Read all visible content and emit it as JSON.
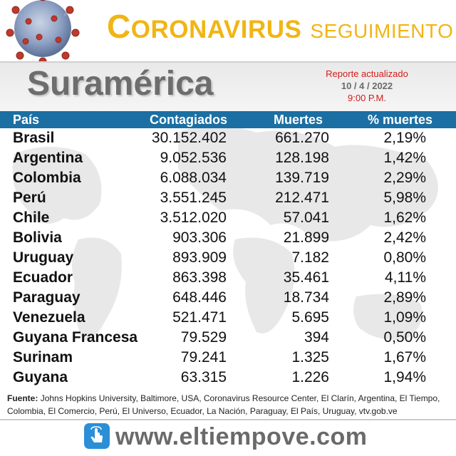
{
  "header": {
    "title_initial": "C",
    "title_rest": "ORONAVIRUS",
    "title_suffix": "SEGUIMIENTO"
  },
  "region": "Suramérica",
  "report": {
    "label": "Reporte actualizado",
    "date": "10 / 4 / 2022",
    "time": "9:00 P.M."
  },
  "table": {
    "columns": [
      "País",
      "Contagiados",
      "Muertes",
      "% muertes"
    ],
    "rows": [
      {
        "country": "Brasil",
        "cases": "30.152.402",
        "deaths": "661.270",
        "pct": "2,19%"
      },
      {
        "country": "Argentina",
        "cases": "9.052.536",
        "deaths": "128.198",
        "pct": "1,42%"
      },
      {
        "country": "Colombia",
        "cases": "6.088.034",
        "deaths": "139.719",
        "pct": "2,29%"
      },
      {
        "country": "Perú",
        "cases": "3.551.245",
        "deaths": "212.471",
        "pct": "5,98%"
      },
      {
        "country": "Chile",
        "cases": "3.512.020",
        "deaths": "57.041",
        "pct": "1,62%"
      },
      {
        "country": "Bolivia",
        "cases": "903.306",
        "deaths": "21.899",
        "pct": "2,42%"
      },
      {
        "country": "Uruguay",
        "cases": "893.909",
        "deaths": "7.182",
        "pct": "0,80%"
      },
      {
        "country": "Ecuador",
        "cases": "863.398",
        "deaths": "35.461",
        "pct": "4,11%"
      },
      {
        "country": "Paraguay",
        "cases": "648.446",
        "deaths": "18.734",
        "pct": "2,89%"
      },
      {
        "country": "Venezuela",
        "cases": "521.471",
        "deaths": "5.695",
        "pct": "1,09%"
      },
      {
        "country": "Guyana Francesa",
        "cases": "79.529",
        "deaths": "394",
        "pct": "0,50%"
      },
      {
        "country": "Surinam",
        "cases": "79.241",
        "deaths": "1.325",
        "pct": "1,67%"
      },
      {
        "country": "Guyana",
        "cases": "63.315",
        "deaths": "1.226",
        "pct": "1,94%"
      }
    ]
  },
  "footer": {
    "source_label": "Fuente:",
    "source_text": "Johns Hopkins University, Baltimore, USA, Coronavirus Resource Center,  El Clarín, Argentina, El Tiempo, Colombia, El Comercio, Perú, El Universo, Ecuador, La Nación, Paraguay, El País, Uruguay, vtv.gob.ve",
    "site": "www.eltiempove.com"
  },
  "icons": {
    "virus": "coronavirus-icon",
    "site": "tap-hand-icon"
  },
  "colors": {
    "title": "#f1b514",
    "header_bar": "#1b6fa3",
    "report_red": "#d21b1b",
    "region_gray": "#6d6d6d"
  }
}
